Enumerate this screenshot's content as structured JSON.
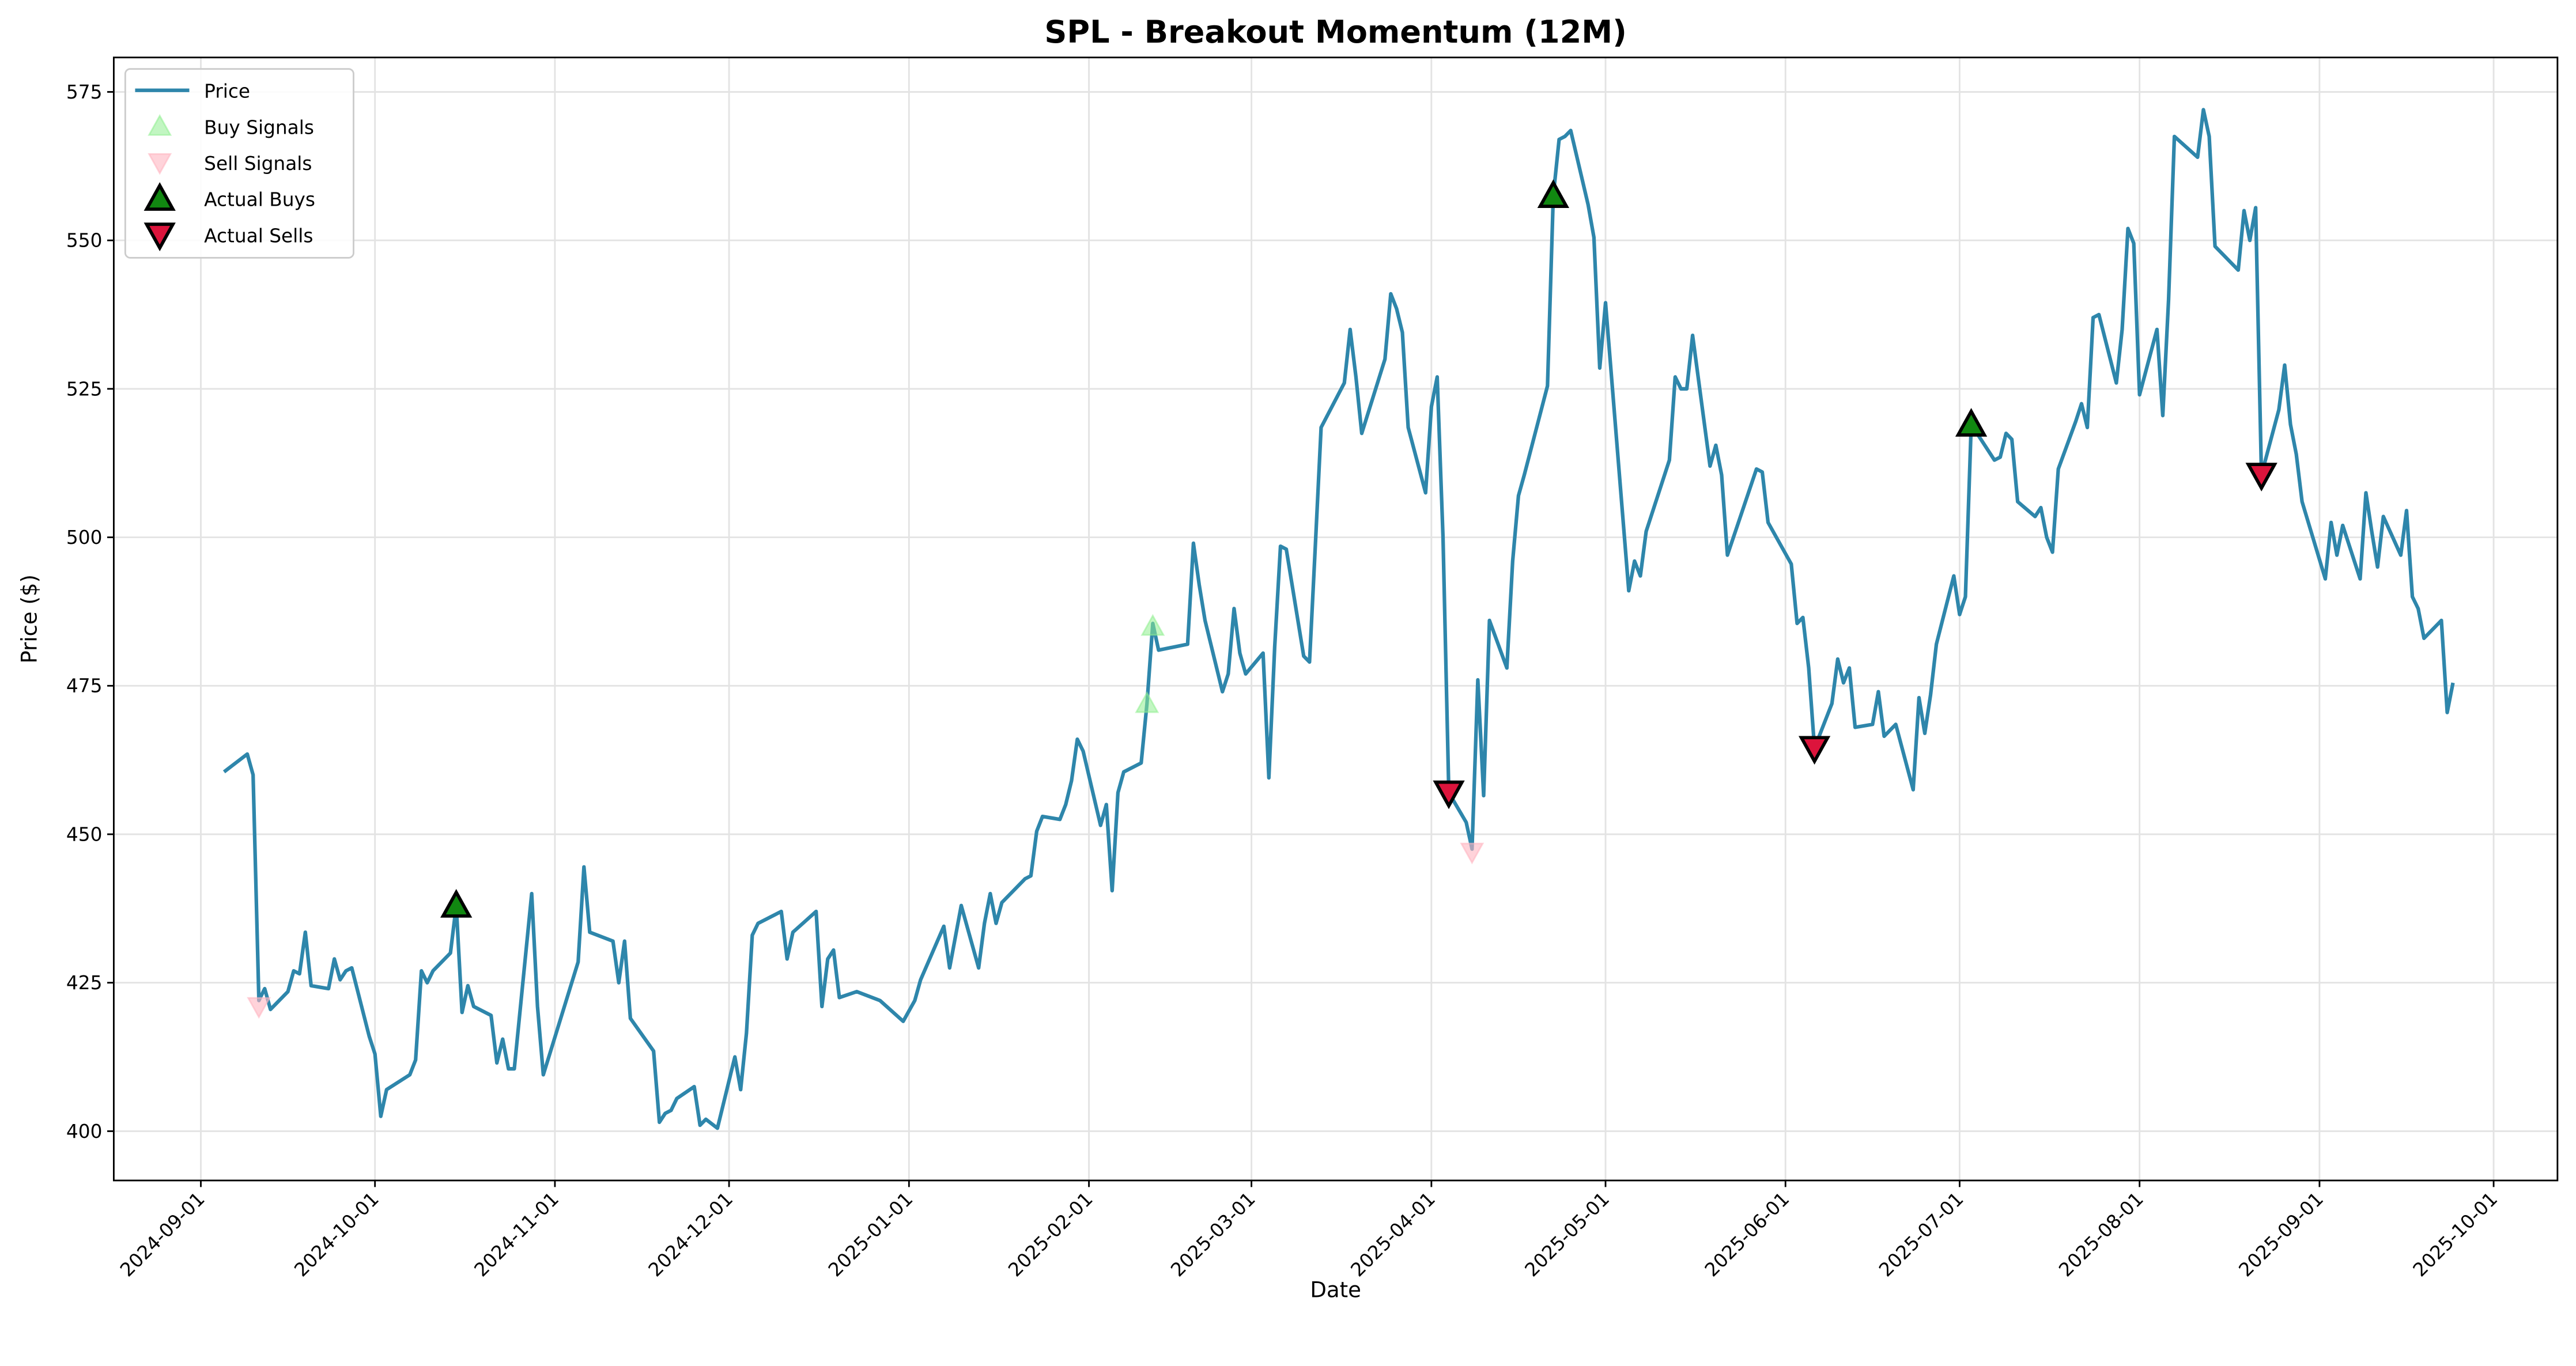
{
  "chart_data": {
    "type": "line",
    "title": "SPL - Breakout Momentum (12M)",
    "x_label": "Date",
    "y_label": "Price ($)",
    "grid": true,
    "legend": "upper left",
    "xlim": [
      "2024-08-17",
      "2025-10-12"
    ],
    "xticks": [
      "2024-09-01",
      "2024-10-01",
      "2024-11-01",
      "2024-12-01",
      "2025-01-01",
      "2025-02-01",
      "2025-03-01",
      "2025-04-01",
      "2025-05-01",
      "2025-06-01",
      "2025-07-01",
      "2025-08-01",
      "2025-09-01",
      "2025-10-01"
    ],
    "ylim": [
      391.7,
      580.8
    ],
    "yticks": [
      400,
      425,
      450,
      475,
      500,
      525,
      550,
      575
    ],
    "series": [
      {
        "name": "Price",
        "type": "line",
        "color": "#2e86ab",
        "x": [
          "2024-09-05",
          "2024-09-09",
          "2024-09-10",
          "2024-09-11",
          "2024-09-12",
          "2024-09-13",
          "2024-09-16",
          "2024-09-17",
          "2024-09-18",
          "2024-09-19",
          "2024-09-20",
          "2024-09-23",
          "2024-09-24",
          "2024-09-25",
          "2024-09-26",
          "2024-09-27",
          "2024-09-30",
          "2024-10-01",
          "2024-10-02",
          "2024-10-03",
          "2024-10-07",
          "2024-10-08",
          "2024-10-09",
          "2024-10-10",
          "2024-10-11",
          "2024-10-14",
          "2024-10-15",
          "2024-10-16",
          "2024-10-17",
          "2024-10-18",
          "2024-10-21",
          "2024-10-22",
          "2024-10-23",
          "2024-10-24",
          "2024-10-25",
          "2024-10-28",
          "2024-10-29",
          "2024-10-30",
          "2024-11-05",
          "2024-11-06",
          "2024-11-07",
          "2024-11-11",
          "2024-11-12",
          "2024-11-13",
          "2024-11-14",
          "2024-11-18",
          "2024-11-19",
          "2024-11-20",
          "2024-11-21",
          "2024-11-22",
          "2024-11-25",
          "2024-11-26",
          "2024-11-27",
          "2024-11-29",
          "2024-12-02",
          "2024-12-03",
          "2024-12-04",
          "2024-12-05",
          "2024-12-06",
          "2024-12-09",
          "2024-12-10",
          "2024-12-11",
          "2024-12-12",
          "2024-12-16",
          "2024-12-17",
          "2024-12-18",
          "2024-12-19",
          "2024-12-20",
          "2024-12-23",
          "2024-12-27",
          "2024-12-31",
          "2025-01-02",
          "2025-01-03",
          "2025-01-07",
          "2025-01-08",
          "2025-01-10",
          "2025-01-13",
          "2025-01-14",
          "2025-01-15",
          "2025-01-16",
          "2025-01-17",
          "2025-01-21",
          "2025-01-22",
          "2025-01-23",
          "2025-01-24",
          "2025-01-27",
          "2025-01-28",
          "2025-01-29",
          "2025-01-30",
          "2025-01-31",
          "2025-02-03",
          "2025-02-04",
          "2025-02-05",
          "2025-02-06",
          "2025-02-07",
          "2025-02-10",
          "2025-02-11",
          "2025-02-12",
          "2025-02-13",
          "2025-02-18",
          "2025-02-19",
          "2025-02-20",
          "2025-02-21",
          "2025-02-24",
          "2025-02-25",
          "2025-02-26",
          "2025-02-27",
          "2025-02-28",
          "2025-03-03",
          "2025-03-04",
          "2025-03-05",
          "2025-03-06",
          "2025-03-07",
          "2025-03-10",
          "2025-03-11",
          "2025-03-12",
          "2025-03-13",
          "2025-03-17",
          "2025-03-18",
          "2025-03-19",
          "2025-03-20",
          "2025-03-24",
          "2025-03-25",
          "2025-03-26",
          "2025-03-27",
          "2025-03-28",
          "2025-03-31",
          "2025-04-01",
          "2025-04-02",
          "2025-04-03",
          "2025-04-04",
          "2025-04-07",
          "2025-04-08",
          "2025-04-09",
          "2025-04-10",
          "2025-04-11",
          "2025-04-14",
          "2025-04-15",
          "2025-04-16",
          "2025-04-17",
          "2025-04-21",
          "2025-04-22",
          "2025-04-23",
          "2025-04-24",
          "2025-04-25",
          "2025-04-28",
          "2025-04-29",
          "2025-04-30",
          "2025-05-01",
          "2025-05-05",
          "2025-05-06",
          "2025-05-07",
          "2025-05-08",
          "2025-05-12",
          "2025-05-13",
          "2025-05-14",
          "2025-05-15",
          "2025-05-16",
          "2025-05-19",
          "2025-05-20",
          "2025-05-21",
          "2025-05-22",
          "2025-05-27",
          "2025-05-28",
          "2025-05-29",
          "2025-06-02",
          "2025-06-03",
          "2025-06-04",
          "2025-06-05",
          "2025-06-06",
          "2025-06-09",
          "2025-06-10",
          "2025-06-11",
          "2025-06-12",
          "2025-06-13",
          "2025-06-16",
          "2025-06-17",
          "2025-06-18",
          "2025-06-20",
          "2025-06-23",
          "2025-06-24",
          "2025-06-25",
          "2025-06-26",
          "2025-06-27",
          "2025-06-30",
          "2025-07-01",
          "2025-07-02",
          "2025-07-03",
          "2025-07-07",
          "2025-07-08",
          "2025-07-09",
          "2025-07-10",
          "2025-07-11",
          "2025-07-14",
          "2025-07-15",
          "2025-07-16",
          "2025-07-17",
          "2025-07-18",
          "2025-07-21",
          "2025-07-22",
          "2025-07-23",
          "2025-07-24",
          "2025-07-25",
          "2025-07-28",
          "2025-07-29",
          "2025-07-30",
          "2025-07-31",
          "2025-08-01",
          "2025-08-04",
          "2025-08-05",
          "2025-08-06",
          "2025-08-07",
          "2025-08-11",
          "2025-08-12",
          "2025-08-13",
          "2025-08-14",
          "2025-08-18",
          "2025-08-19",
          "2025-08-20",
          "2025-08-21",
          "2025-08-22",
          "2025-08-25",
          "2025-08-26",
          "2025-08-27",
          "2025-08-28",
          "2025-08-29",
          "2025-09-02",
          "2025-09-03",
          "2025-09-04",
          "2025-09-05",
          "2025-09-08",
          "2025-09-09",
          "2025-09-10",
          "2025-09-11",
          "2025-09-12",
          "2025-09-15",
          "2025-09-16",
          "2025-09-17",
          "2025-09-18",
          "2025-09-19",
          "2025-09-22",
          "2025-09-23",
          "2025-09-24"
        ],
        "values": [
          460.5,
          463.5,
          460,
          422,
          424,
          420.5,
          423.5,
          427,
          426.5,
          433.5,
          424.5,
          424,
          429,
          425.5,
          427,
          427.5,
          416,
          413,
          402.5,
          407,
          409.5,
          412,
          427,
          425,
          427,
          430,
          438,
          420,
          424.5,
          421,
          419.5,
          411.5,
          415.5,
          410.5,
          410.5,
          440,
          421,
          409.5,
          428.5,
          444.5,
          433.5,
          432,
          425,
          432,
          419,
          413.5,
          401.5,
          403,
          403.5,
          405.5,
          407.5,
          401,
          402,
          400.5,
          412.5,
          407,
          416.5,
          433,
          435,
          436.5,
          437,
          429,
          433.5,
          437,
          421,
          429,
          430.5,
          422.5,
          423.5,
          422,
          418.5,
          422,
          425.5,
          434.5,
          427.5,
          438,
          427.5,
          435,
          440,
          435,
          438.5,
          442.5,
          443,
          450.5,
          453,
          452.5,
          455,
          459,
          466,
          464,
          451.5,
          455,
          440.5,
          457,
          460.5,
          462,
          472,
          485.5,
          481,
          482,
          499,
          492,
          486,
          474,
          477,
          488,
          480.5,
          477,
          480.5,
          459.5,
          481.5,
          498.5,
          498,
          480,
          479,
          498.5,
          518.5,
          526,
          535,
          527,
          517.5,
          530,
          541,
          538.5,
          534.5,
          518.5,
          507.5,
          522,
          527,
          500,
          457,
          452,
          447.5,
          476,
          456.5,
          486,
          478,
          496,
          507,
          510.5,
          525.5,
          557.5,
          567,
          567.5,
          568.5,
          556,
          550.5,
          528.5,
          539.5,
          491,
          496,
          493.5,
          501,
          513,
          527,
          525,
          525,
          534,
          512,
          515.5,
          510.5,
          497,
          511.5,
          511,
          502.5,
          495.5,
          485.5,
          486.5,
          478,
          464.5,
          472,
          479.5,
          475.5,
          478,
          468,
          468.5,
          474,
          466.5,
          468.5,
          457.5,
          473,
          467,
          473.5,
          482,
          493.5,
          487,
          490,
          519,
          513,
          513.5,
          517.5,
          516.5,
          506,
          503.5,
          505,
          500,
          497.5,
          511.5,
          519.5,
          522.5,
          518.5,
          537,
          537.5,
          526,
          535,
          552,
          549.5,
          524,
          535,
          520.5,
          540,
          567.5,
          564,
          572,
          567.5,
          549,
          545,
          555,
          550,
          555.5,
          510.5,
          521.5,
          529,
          519,
          514,
          506,
          493,
          502.5,
          497,
          502,
          493,
          507.5,
          501,
          495,
          503.5,
          497,
          504.5,
          490,
          488,
          483,
          486,
          470.5,
          475.5
        ]
      },
      {
        "name": "Buy Signals",
        "type": "scatter",
        "marker": "up",
        "color": "#90ee90",
        "opacity": 0.55,
        "edge": "#90ee90",
        "x": [
          "2025-02-11",
          "2025-02-12"
        ],
        "values": [
          472,
          485
        ]
      },
      {
        "name": "Sell Signals",
        "type": "scatter",
        "marker": "down",
        "color": "#ffb6c1",
        "opacity": 0.6,
        "edge": "#ffb6c1",
        "x": [
          "2024-09-11",
          "2025-04-08"
        ],
        "values": [
          421,
          447
        ]
      },
      {
        "name": "Actual Buys",
        "type": "scatter",
        "marker": "up",
        "color": "#118811",
        "opacity": 1,
        "edge": "#000000",
        "x": [
          "2024-10-15",
          "2025-04-22",
          "2025-07-03"
        ],
        "values": [
          438,
          557.5,
          519
        ]
      },
      {
        "name": "Actual Sells",
        "type": "scatter",
        "marker": "down",
        "color": "#dc143c",
        "opacity": 1,
        "edge": "#000000",
        "x": [
          "2025-04-04",
          "2025-06-06",
          "2025-08-22"
        ],
        "values": [
          457,
          464.5,
          510.5
        ]
      }
    ]
  }
}
